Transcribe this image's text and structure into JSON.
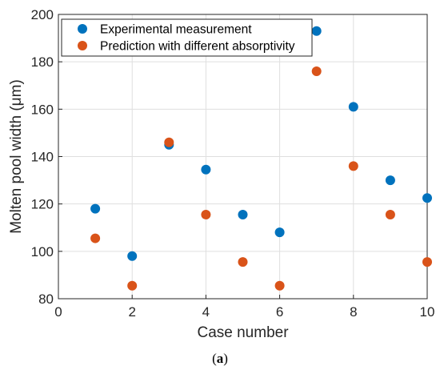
{
  "chart_data": {
    "type": "scatter",
    "xlabel": "Case number",
    "ylabel": "Molten pool width (μm)",
    "xlim": [
      0,
      10
    ],
    "ylim": [
      80,
      200
    ],
    "x_ticks": [
      "0",
      "2",
      "4",
      "6",
      "8",
      "10"
    ],
    "y_ticks": [
      "80",
      "100",
      "120",
      "140",
      "160",
      "180",
      "200"
    ],
    "grid": true,
    "legend_placement": "top-left",
    "series": [
      {
        "name": "Experimental measurement",
        "color": "#0072BD",
        "x": [
          1,
          2,
          3,
          4,
          5,
          6,
          7,
          8,
          9,
          10
        ],
        "y": [
          118,
          98,
          145,
          134.5,
          115.5,
          108,
          193,
          161,
          130,
          122.5
        ]
      },
      {
        "name": "Prediction with different absorptivity",
        "color": "#D95319",
        "x": [
          1,
          2,
          3,
          4,
          5,
          6,
          7,
          8,
          9,
          10
        ],
        "y": [
          105.5,
          85.5,
          146,
          115.5,
          95.5,
          85.5,
          176,
          136,
          115.5,
          95.5
        ]
      }
    ]
  },
  "caption": {
    "open": "(",
    "letter": "a",
    "close": ")"
  }
}
